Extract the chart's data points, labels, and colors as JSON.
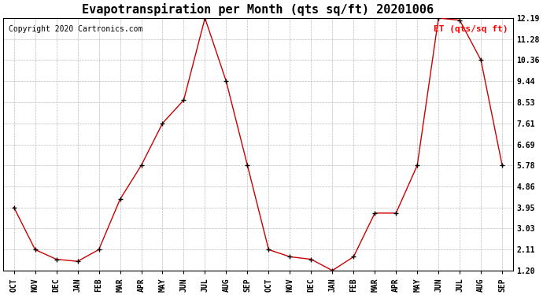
{
  "title": "Evapotranspiration per Month (qts sq/ft) 20201006",
  "copyright": "Copyright 2020 Cartronics.com",
  "legend_label": "ET (qts/sq ft)",
  "categories": [
    "OCT",
    "NOV",
    "DEC",
    "JAN",
    "FEB",
    "MAR",
    "APR",
    "MAY",
    "JUN",
    "JUL",
    "AUG",
    "SEP",
    "OCT",
    "NOV",
    "DEC",
    "JAN",
    "FEB",
    "MAR",
    "APR",
    "MAY",
    "JUN",
    "JUL",
    "AUG",
    "SEP"
  ],
  "values": [
    3.95,
    2.11,
    1.69,
    1.6,
    2.11,
    4.3,
    5.78,
    7.61,
    8.62,
    12.19,
    9.44,
    5.78,
    2.11,
    1.8,
    1.69,
    1.2,
    1.8,
    3.7,
    3.7,
    5.78,
    12.19,
    12.1,
    10.36,
    5.78
  ],
  "line_color": "#cc0000",
  "marker_color": "#000000",
  "background_color": "#ffffff",
  "grid_color": "#bbbbbb",
  "yticks": [
    1.2,
    2.11,
    3.03,
    3.95,
    4.86,
    5.78,
    6.69,
    7.61,
    8.53,
    9.44,
    10.36,
    11.28,
    12.19
  ],
  "ylim_min": 1.2,
  "ylim_max": 12.19,
  "title_fontsize": 11,
  "axis_fontsize": 7,
  "copyright_fontsize": 7,
  "legend_fontsize": 8
}
